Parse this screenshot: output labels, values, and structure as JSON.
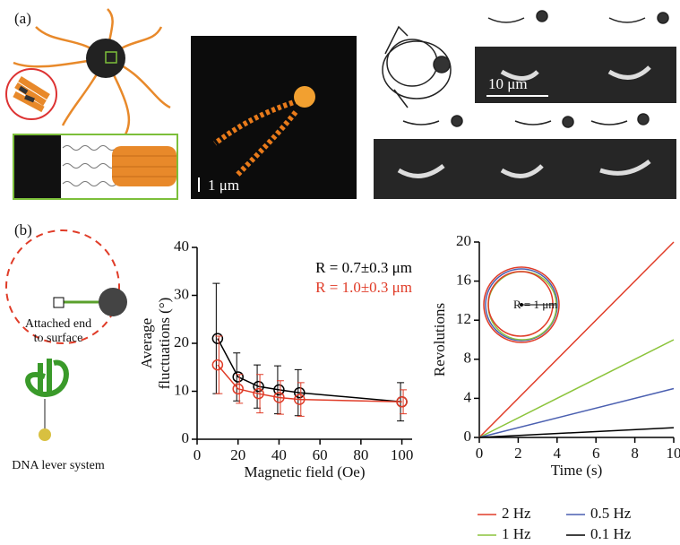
{
  "panel_labels": [
    "(a)",
    "(b)"
  ],
  "scale_bars": [
    "1 μm",
    "10 μm"
  ],
  "diagram_labels": [
    "Attached end",
    "to surface",
    "DNA lever system"
  ],
  "chart_data": [
    {
      "type": "line",
      "xlabel": "Magnetic field (Oe)",
      "ylabel": [
        "Average",
        "fluctuations (°)"
      ],
      "x": [
        10,
        20,
        30,
        40,
        50,
        100
      ],
      "xlim": [
        0,
        105
      ],
      "xticks": [
        0,
        20,
        40,
        60,
        80,
        100
      ],
      "ylim": [
        0,
        40
      ],
      "yticks": [
        0,
        10,
        20,
        30,
        40
      ],
      "markers": true,
      "legend": "upper right",
      "series": [
        {
          "name": "R = 0.7±0.3 μm",
          "color": "#000000",
          "values": [
            21,
            13,
            11,
            10.3,
            9.7,
            7.8
          ],
          "errors": [
            11.5,
            5,
            4.5,
            5,
            4.8,
            4
          ]
        },
        {
          "name": "R = 1.0±0.3 μm",
          "color": "#e03c28",
          "values": [
            15.5,
            10.5,
            9.5,
            8.7,
            8.3,
            7.8
          ],
          "errors": [
            6,
            3,
            4,
            3.5,
            3.5,
            2.5
          ]
        }
      ]
    },
    {
      "type": "line",
      "xlabel": "Time (s)",
      "ylabel": [
        "Revolutions"
      ],
      "x": [
        0,
        10
      ],
      "xlim": [
        0,
        10
      ],
      "xticks": [
        0,
        2,
        4,
        6,
        8,
        10
      ],
      "ylim": [
        0,
        20
      ],
      "yticks": [
        0,
        4,
        8,
        12,
        16,
        20
      ],
      "markers": false,
      "legend": "below",
      "annotation": "R = 1 μm",
      "series": [
        {
          "name": "2 Hz",
          "color": "#e03c28",
          "values": [
            0,
            20
          ]
        },
        {
          "name": "1 Hz",
          "color": "#8cc43c",
          "values": [
            0,
            10
          ]
        },
        {
          "name": "0.5 Hz",
          "color": "#4a5fb0",
          "values": [
            0,
            5
          ]
        },
        {
          "name": "0.1 Hz",
          "color": "#000000",
          "values": [
            0,
            1
          ]
        }
      ]
    }
  ]
}
